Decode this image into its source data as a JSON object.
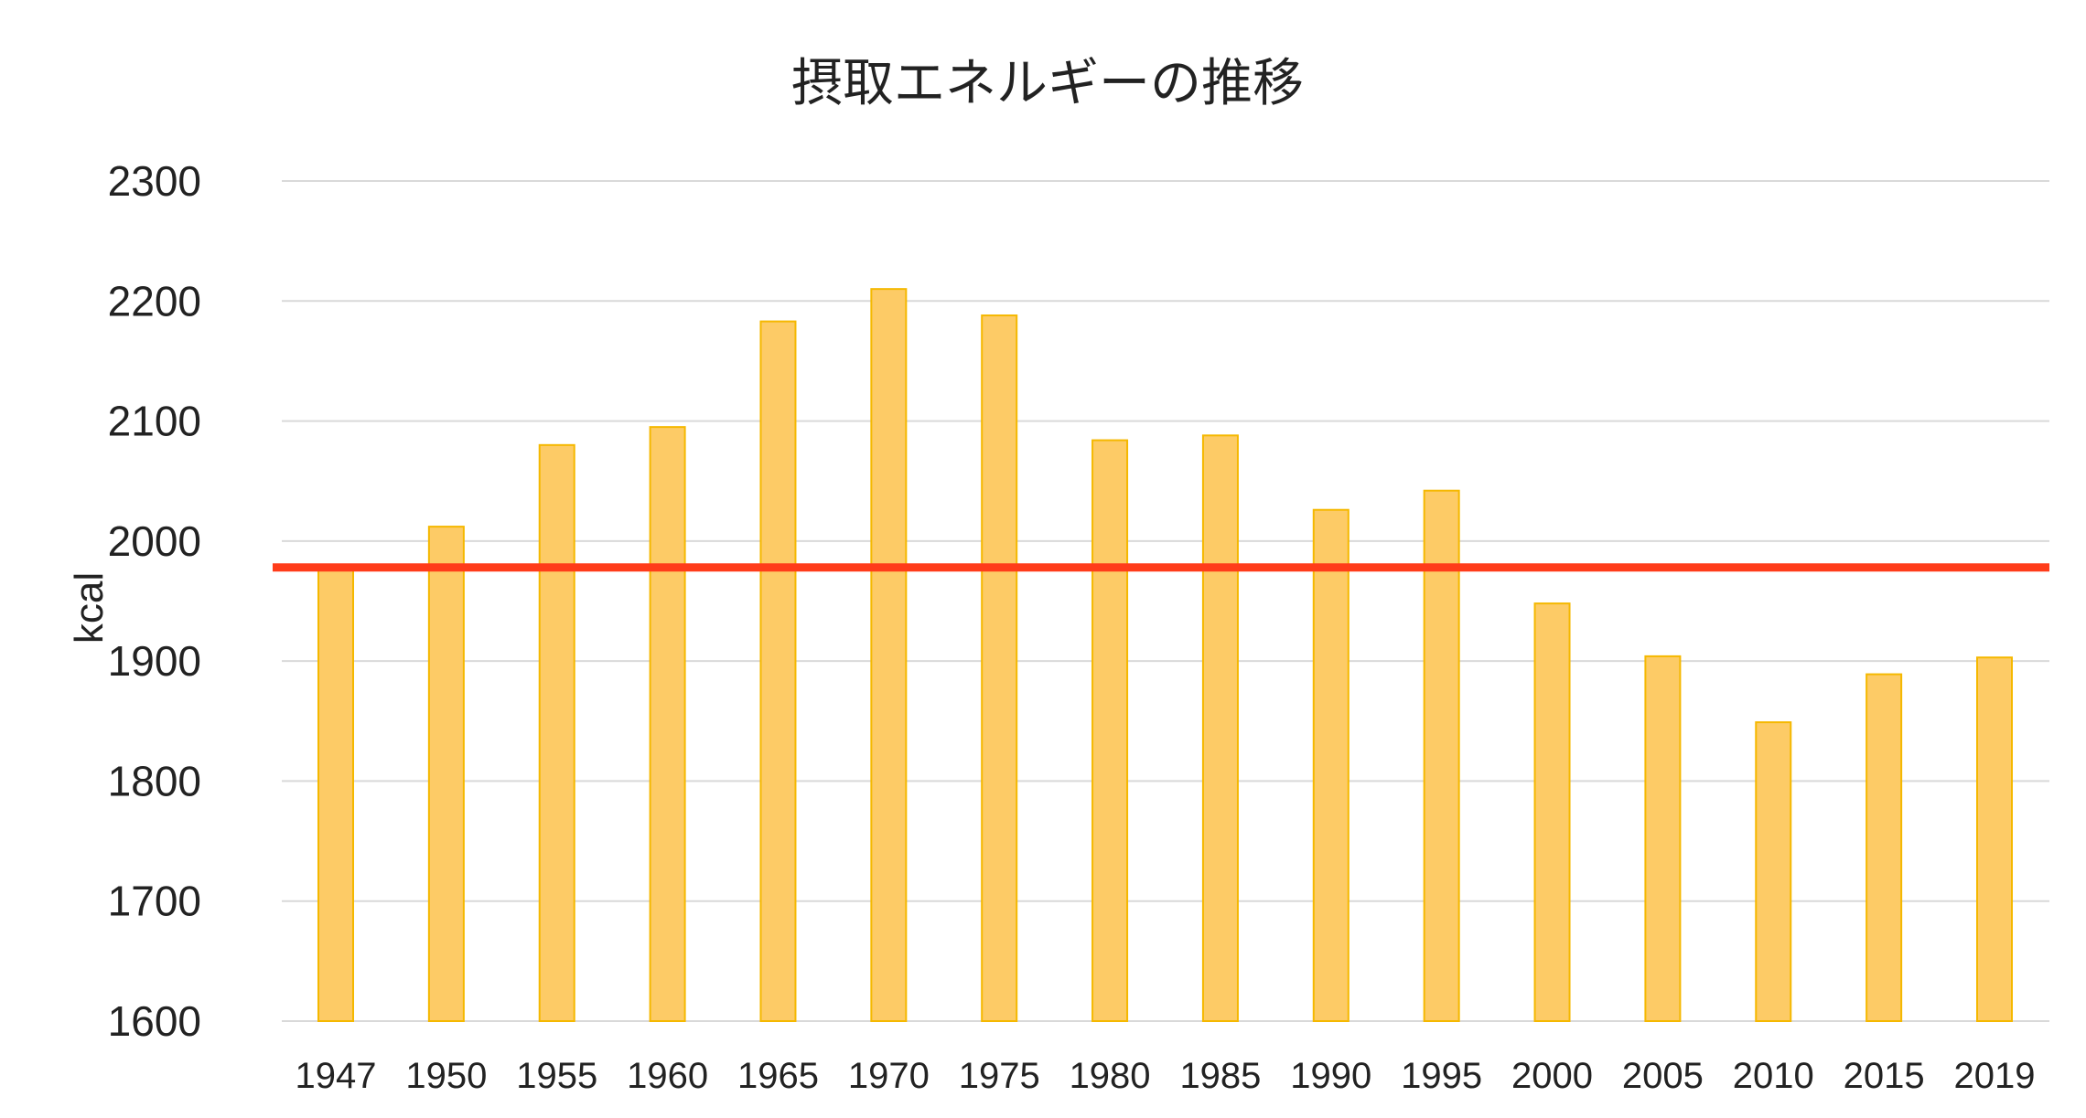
{
  "chart_data": {
    "type": "bar",
    "title": "摂取エネルギーの推移",
    "xlabel": "",
    "ylabel": "kcal",
    "categories": [
      "1947",
      "1950",
      "1955",
      "1960",
      "1965",
      "1970",
      "1975",
      "1980",
      "1985",
      "1990",
      "1995",
      "2000",
      "2005",
      "2010",
      "2015",
      "2019"
    ],
    "values": [
      1980,
      2012,
      2080,
      2095,
      2183,
      2210,
      2188,
      2084,
      2088,
      2026,
      2042,
      1948,
      1904,
      1849,
      1889,
      1903
    ],
    "ylim": [
      1600,
      2300
    ],
    "yticks": [
      "1600",
      "1700",
      "1800",
      "1900",
      "2000",
      "2100",
      "2200",
      "2300"
    ],
    "grid": true,
    "legend": "none",
    "reference_line": {
      "value": 1978
    },
    "colors": {
      "bar_fill": "#fdcb66",
      "bar_stroke": "#f5b800",
      "reference_line": "#ff3c1a",
      "grid": "#d9d9d9"
    }
  }
}
